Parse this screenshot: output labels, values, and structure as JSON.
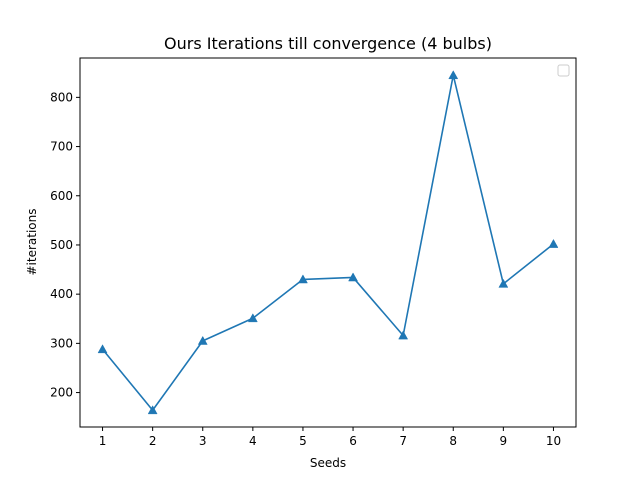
{
  "chart_data": {
    "type": "line",
    "title": "Ours Iterations till convergence (4 bulbs)",
    "xlabel": "Seeds",
    "ylabel": "#iterations",
    "x": [
      1,
      2,
      3,
      4,
      5,
      6,
      7,
      8,
      9,
      10
    ],
    "series": [
      {
        "values": [
          288,
          164,
          305,
          351,
          430,
          434,
          316,
          845,
          421,
          502
        ],
        "color": "#1f77b4",
        "marker": "triangle-up"
      }
    ],
    "xticks": [
      "1",
      "2",
      "3",
      "4",
      "5",
      "6",
      "7",
      "8",
      "9",
      "10"
    ],
    "yticks": [
      200,
      300,
      400,
      500,
      600,
      700,
      800
    ],
    "xlim": [
      0.55,
      10.45
    ],
    "ylim": [
      130,
      880
    ],
    "grid": false,
    "legend": {
      "placement": "top-right",
      "entries": []
    }
  }
}
